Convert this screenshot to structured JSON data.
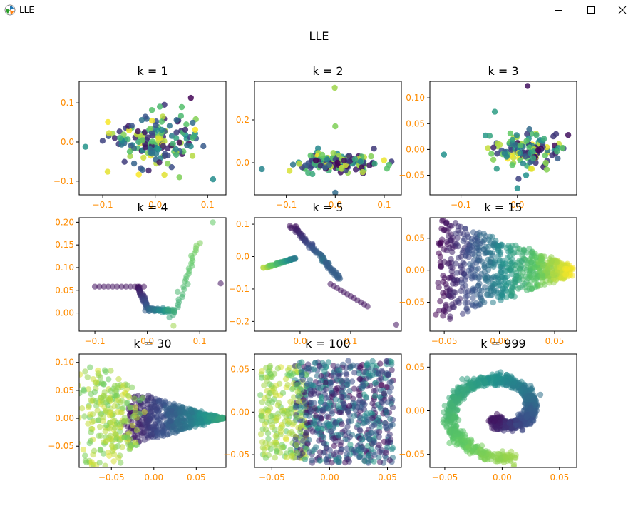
{
  "window": {
    "title": "LLE",
    "minimize_label": "minimize",
    "maximize_label": "maximize",
    "close_label": "close"
  },
  "figure": {
    "suptitle": "LLE",
    "tick_color": "#ff8c00",
    "cmap": [
      "#440154",
      "#3b528b",
      "#21918c",
      "#5ec962",
      "#fde725"
    ]
  },
  "chart_data": [
    {
      "type": "scatter",
      "title": "k = 1",
      "pattern": "blob",
      "alpha": 0.85,
      "n": 170,
      "xlim": [
        -0.145,
        0.135
      ],
      "ylim": [
        -0.135,
        0.155
      ],
      "xticks": [
        -0.1,
        0.0,
        0.1
      ],
      "xtick_labels": [
        "−0.1",
        "0.0",
        "0.1"
      ],
      "yticks": [
        -0.1,
        0.0,
        0.1
      ],
      "ytick_labels": [
        "−0.1",
        "0.0",
        "0.1"
      ]
    },
    {
      "type": "scatter",
      "title": "k = 2",
      "pattern": "spike",
      "alpha": 0.85,
      "n": 150,
      "xlim": [
        -0.165,
        0.135
      ],
      "ylim": [
        -0.15,
        0.38
      ],
      "xticks": [
        -0.1,
        0.0,
        0.1
      ],
      "xtick_labels": [
        "−0.1",
        "0.0",
        "0.1"
      ],
      "yticks": [
        0.0,
        0.2
      ],
      "ytick_labels": [
        "0.0",
        "0.2"
      ]
    },
    {
      "type": "scatter",
      "title": "k = 3",
      "pattern": "star",
      "alpha": 0.85,
      "n": 150,
      "xlim": [
        -0.155,
        0.105
      ],
      "ylim": [
        -0.088,
        0.132
      ],
      "xticks": [
        -0.1,
        0.0
      ],
      "xtick_labels": [
        "−0.1",
        "0.0"
      ],
      "yticks": [
        -0.05,
        0.0,
        0.05,
        0.1
      ],
      "ytick_labels": [
        "−0.05",
        "0.00",
        "0.05",
        "0.10"
      ]
    },
    {
      "type": "scatter",
      "title": "k = 4",
      "pattern": "vshape",
      "alpha": 0.55,
      "n": 140,
      "xlim": [
        -0.13,
        0.15
      ],
      "ylim": [
        -0.04,
        0.21
      ],
      "xticks": [
        -0.1,
        0.0,
        0.1
      ],
      "xtick_labels": [
        "−0.1",
        "0.0",
        "0.1"
      ],
      "yticks": [
        0.0,
        0.05,
        0.1,
        0.15,
        0.2
      ],
      "ytick_labels": [
        "0.00",
        "0.05",
        "0.10",
        "0.15",
        "0.20"
      ]
    },
    {
      "type": "scatter",
      "title": "k = 5",
      "pattern": "diagonal",
      "alpha": 0.55,
      "n": 190,
      "xlim": [
        -0.09,
        0.2
      ],
      "ylim": [
        -0.23,
        0.12
      ],
      "xticks": [
        0.0,
        0.1
      ],
      "xtick_labels": [
        "0.0",
        "0.1"
      ],
      "yticks": [
        -0.2,
        -0.1,
        0.0,
        0.1
      ],
      "ytick_labels": [
        "−0.2",
        "−0.1",
        "0.0",
        "0.1"
      ]
    },
    {
      "type": "scatter",
      "title": "k = 15",
      "pattern": "fan",
      "alpha": 0.55,
      "n": 700,
      "xlim": [
        -0.063,
        0.07
      ],
      "ylim": [
        -0.095,
        0.082
      ],
      "xticks": [
        -0.05,
        0.0,
        0.05
      ],
      "xtick_labels": [
        "−0.05",
        "0.00",
        "0.05"
      ],
      "yticks": [
        -0.05,
        0.0,
        0.05
      ],
      "ytick_labels": [
        "−0.05",
        "0.00",
        "0.05"
      ]
    },
    {
      "type": "scatter",
      "title": "k = 30",
      "pattern": "triangle",
      "alpha": 0.55,
      "n": 800,
      "xlim": [
        -0.088,
        0.085
      ],
      "ylim": [
        -0.088,
        0.115
      ],
      "xticks": [
        -0.05,
        0.0,
        0.05
      ],
      "xtick_labels": [
        "−0.05",
        "0.00",
        "0.05"
      ],
      "yticks": [
        -0.05,
        0.0,
        0.05,
        0.1
      ],
      "ytick_labels": [
        "−0.05",
        "0.00",
        "0.05",
        "0.10"
      ]
    },
    {
      "type": "scatter",
      "title": "k = 100",
      "pattern": "rect",
      "alpha": 0.55,
      "n": 900,
      "xlim": [
        -0.065,
        0.062
      ],
      "ylim": [
        -0.065,
        0.068
      ],
      "xticks": [
        -0.05,
        0.0,
        0.05
      ],
      "xtick_labels": [
        "−0.05",
        "0.00",
        "0.05"
      ],
      "yticks": [
        -0.05,
        0.0,
        0.05
      ],
      "ytick_labels": [
        "−0.05",
        "0.00",
        "0.05"
      ]
    },
    {
      "type": "scatter",
      "title": "k = 999",
      "pattern": "spiral",
      "alpha": 0.55,
      "n": 1000,
      "xlim": [
        -0.063,
        0.065
      ],
      "ylim": [
        -0.065,
        0.065
      ],
      "xticks": [
        -0.05,
        0.0,
        0.05
      ],
      "xtick_labels": [
        "−0.05",
        "0.00",
        "0.05"
      ],
      "yticks": [
        -0.05,
        0.0,
        0.05
      ],
      "ytick_labels": [
        "−0.05",
        "0.00",
        "0.05"
      ]
    }
  ]
}
